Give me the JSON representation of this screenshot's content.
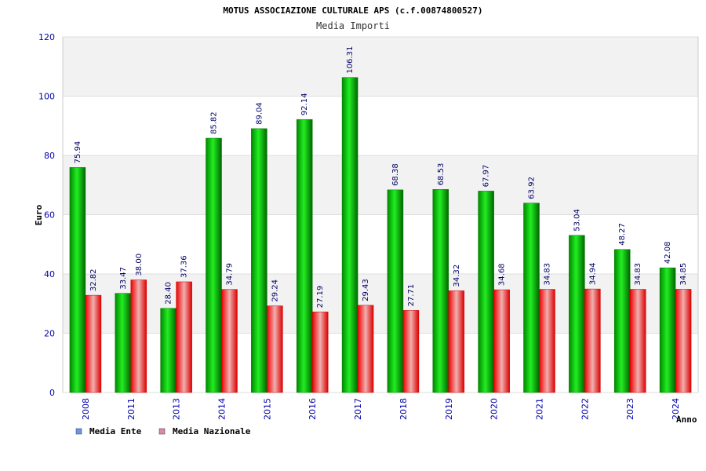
{
  "chart_data": {
    "type": "bar",
    "title": "MOTUS ASSOCIAZIONE CULTURALE APS (c.f.00874800527)",
    "subtitle": "Media Importi",
    "ylabel": "Euro",
    "xlabel": "Anno",
    "ylim": [
      0,
      120
    ],
    "yticks": [
      0,
      20,
      40,
      60,
      80,
      100,
      120
    ],
    "grid": true,
    "categories": [
      "2008",
      "2011",
      "2013",
      "2014",
      "2015",
      "2016",
      "2017",
      "2018",
      "2019",
      "2020",
      "2021",
      "2022",
      "2023",
      "2024"
    ],
    "series": [
      {
        "name": "Media Ente",
        "color": "#00c000",
        "legend_color": "#6699ee",
        "values": [
          75.94,
          33.47,
          28.4,
          85.82,
          89.04,
          92.14,
          106.31,
          68.38,
          68.53,
          67.97,
          63.92,
          53.04,
          48.27,
          42.08
        ],
        "labels": [
          "75.94",
          "33.47",
          "28.40",
          "85.82",
          "89.04",
          "92.14",
          "106.31",
          "68.38",
          "68.53",
          "67.97",
          "63.92",
          "53.04",
          "48.27",
          "42.08"
        ]
      },
      {
        "name": "Media Nazionale",
        "color": "#ee2222",
        "legend_color": "#dd88aa",
        "values": [
          32.82,
          38.0,
          37.36,
          34.79,
          29.24,
          27.19,
          29.43,
          27.71,
          34.32,
          34.68,
          34.83,
          34.94,
          34.83,
          34.85
        ],
        "labels": [
          "32.82",
          "38.00",
          "37.36",
          "34.79",
          "29.24",
          "27.19",
          "29.43",
          "27.71",
          "34.32",
          "34.68",
          "34.83",
          "34.94",
          "34.83",
          "34.85"
        ]
      }
    ],
    "legend_position": "bottom-left"
  }
}
